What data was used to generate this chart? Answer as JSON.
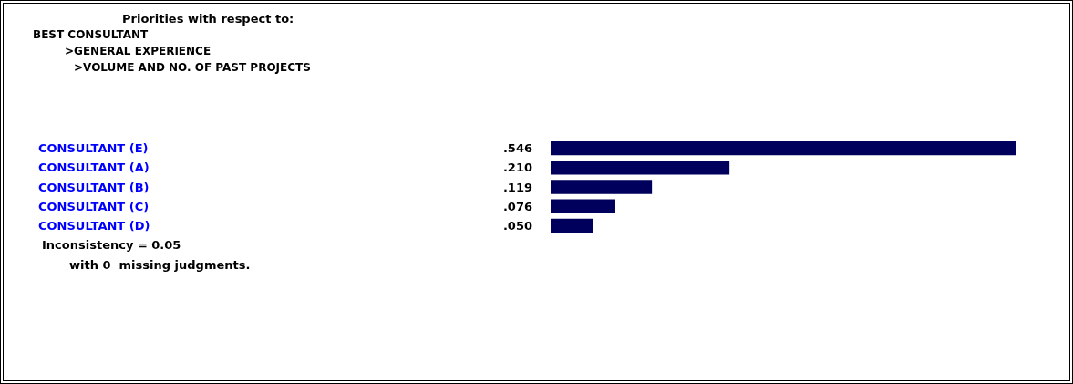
{
  "chart_data": {
    "type": "bar",
    "orientation": "horizontal",
    "title": "Priorities with respect to:",
    "subtitle": "BEST CONSULTANT\n>GENERAL EXPERIENCE\n>VOLUME AND NO. OF PAST PROJECTS",
    "categories": [
      "CONSULTANT (E)",
      "CONSULTANT (A)",
      "CONSULTANT (B)",
      "CONSULTANT (C)",
      "CONSULTANT (D)"
    ],
    "values": [
      0.546,
      0.21,
      0.119,
      0.076,
      0.05
    ],
    "value_labels": [
      ".546",
      ".210",
      ".119",
      ".076",
      ".050"
    ],
    "color": "#00005c",
    "annotations": [
      "Inconsistency = 0.05",
      "with 0  missing judgments."
    ]
  }
}
